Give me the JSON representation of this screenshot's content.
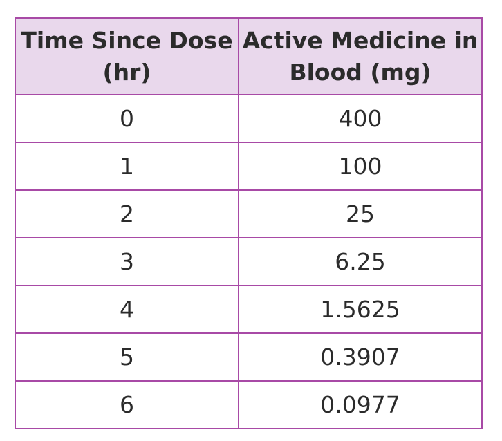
{
  "table": {
    "headers": [
      "Time Since Dose (hr)",
      "Active Medicine in Blood (mg)"
    ],
    "rows": [
      [
        "0",
        "400"
      ],
      [
        "1",
        "100"
      ],
      [
        "2",
        "25"
      ],
      [
        "3",
        "6.25"
      ],
      [
        "4",
        "1.5625"
      ],
      [
        "5",
        "0.3907"
      ],
      [
        "6",
        "0.0977"
      ]
    ],
    "colors": {
      "border": "#a84aa6",
      "header_background": "#e9d8ec",
      "text": "#2b2b2b"
    }
  }
}
